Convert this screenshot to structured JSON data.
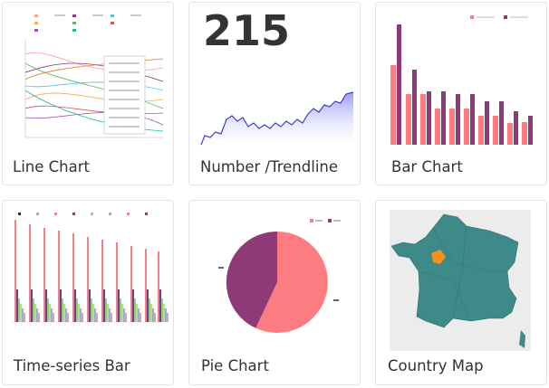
{
  "cards": [
    {
      "label": "Line Chart"
    },
    {
      "number": 215,
      "label": "Number /Trendline"
    },
    {
      "label": "Bar Chart"
    },
    {
      "label": "Time-series Bar"
    },
    {
      "label": "Pie Chart"
    },
    {
      "label": "Country Map"
    }
  ]
}
